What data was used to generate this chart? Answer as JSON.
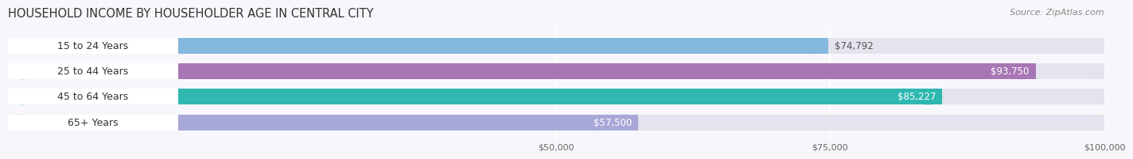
{
  "title": "HOUSEHOLD INCOME BY HOUSEHOLDER AGE IN CENTRAL CITY",
  "source": "Source: ZipAtlas.com",
  "categories": [
    "15 to 24 Years",
    "25 to 44 Years",
    "45 to 64 Years",
    "65+ Years"
  ],
  "values": [
    74792,
    93750,
    85227,
    57500
  ],
  "bar_colors": [
    "#85b8de",
    "#a876b4",
    "#2eb8b0",
    "#a8a8d8"
  ],
  "bar_bg_color": "#e4e4ee",
  "value_labels": [
    "$74,792",
    "$93,750",
    "$85,227",
    "$57,500"
  ],
  "value_inside": [
    false,
    true,
    true,
    true
  ],
  "xmin": 0,
  "xmax": 100000,
  "xticks": [
    50000,
    75000,
    100000
  ],
  "xtick_labels": [
    "$50,000",
    "$75,000",
    "$100,000"
  ],
  "title_fontsize": 10.5,
  "source_fontsize": 8,
  "label_fontsize": 9,
  "value_fontsize": 8.5,
  "bg_color": "#f7f7fb"
}
